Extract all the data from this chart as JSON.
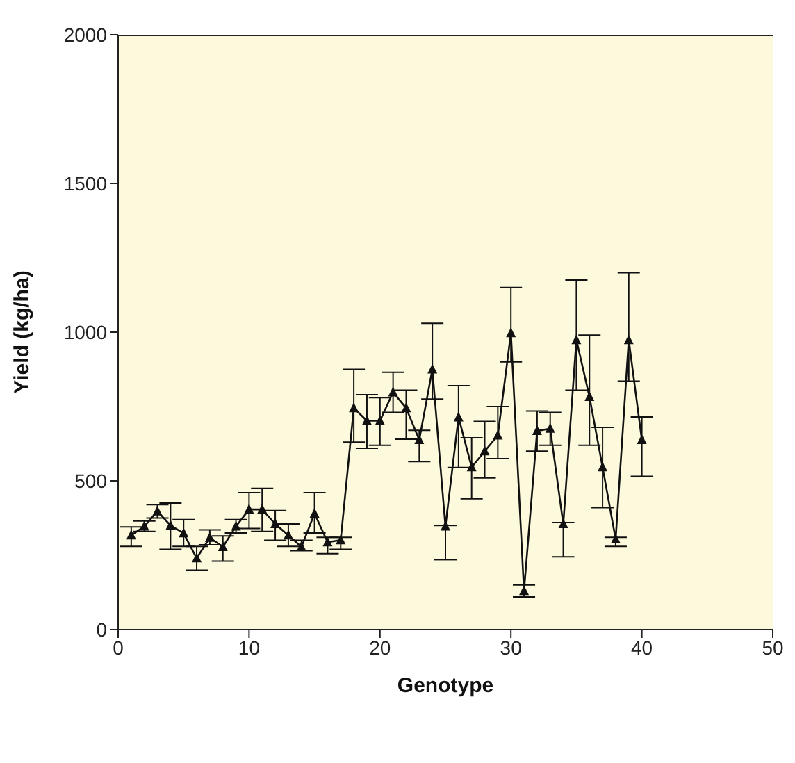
{
  "chart_data": {
    "type": "line",
    "xlabel": "Genotype",
    "ylabel": "Yield (kg/ha)",
    "x": [
      1,
      2,
      3,
      4,
      5,
      6,
      7,
      8,
      9,
      10,
      11,
      12,
      13,
      14,
      15,
      16,
      17,
      18,
      19,
      20,
      21,
      22,
      23,
      24,
      25,
      26,
      27,
      28,
      29,
      30,
      31,
      32,
      33,
      34,
      35,
      36,
      37,
      38,
      39,
      40
    ],
    "series": [
      {
        "color": "#111111",
        "values": [
          317,
          347,
          398,
          350,
          324,
          240,
          309,
          278,
          347,
          404,
          404,
          355,
          317,
          278,
          390,
          294,
          301,
          745,
          702,
          702,
          798,
          745,
          638,
          875,
          347,
          714,
          546,
          600,
          653,
          997,
          130,
          668,
          676,
          355,
          974,
          783,
          546,
          304,
          974,
          638
        ],
        "errors": [
          [
            280,
            345
          ],
          [
            330,
            365
          ],
          [
            375,
            420
          ],
          [
            270,
            425
          ],
          [
            280,
            370
          ],
          [
            200,
            280
          ],
          [
            285,
            335
          ],
          [
            230,
            315
          ],
          [
            325,
            370
          ],
          [
            340,
            460
          ],
          [
            330,
            475
          ],
          [
            300,
            400
          ],
          [
            280,
            355
          ],
          [
            265,
            300
          ],
          [
            325,
            460
          ],
          [
            255,
            310
          ],
          [
            270,
            310
          ],
          [
            630,
            875
          ],
          [
            610,
            790
          ],
          [
            620,
            780
          ],
          [
            730,
            865
          ],
          [
            640,
            805
          ],
          [
            565,
            670
          ],
          [
            775,
            1030
          ],
          [
            235,
            350
          ],
          [
            545,
            820
          ],
          [
            440,
            645
          ],
          [
            510,
            700
          ],
          [
            575,
            750
          ],
          [
            900,
            1150
          ],
          [
            110,
            150
          ],
          [
            600,
            735
          ],
          [
            620,
            730
          ],
          [
            245,
            360
          ],
          [
            805,
            1175
          ],
          [
            620,
            990
          ],
          [
            410,
            680
          ],
          [
            280,
            310
          ],
          [
            835,
            1200
          ],
          [
            515,
            715
          ]
        ]
      }
    ],
    "xlim": [
      0,
      50
    ],
    "xticks": [
      0,
      10,
      20,
      30,
      40,
      50
    ],
    "ylim": [
      0,
      2000
    ],
    "yticks": [
      0,
      500,
      1000,
      1500,
      2000
    ],
    "grid": false,
    "marker": "triangle",
    "line_style": "solid"
  }
}
